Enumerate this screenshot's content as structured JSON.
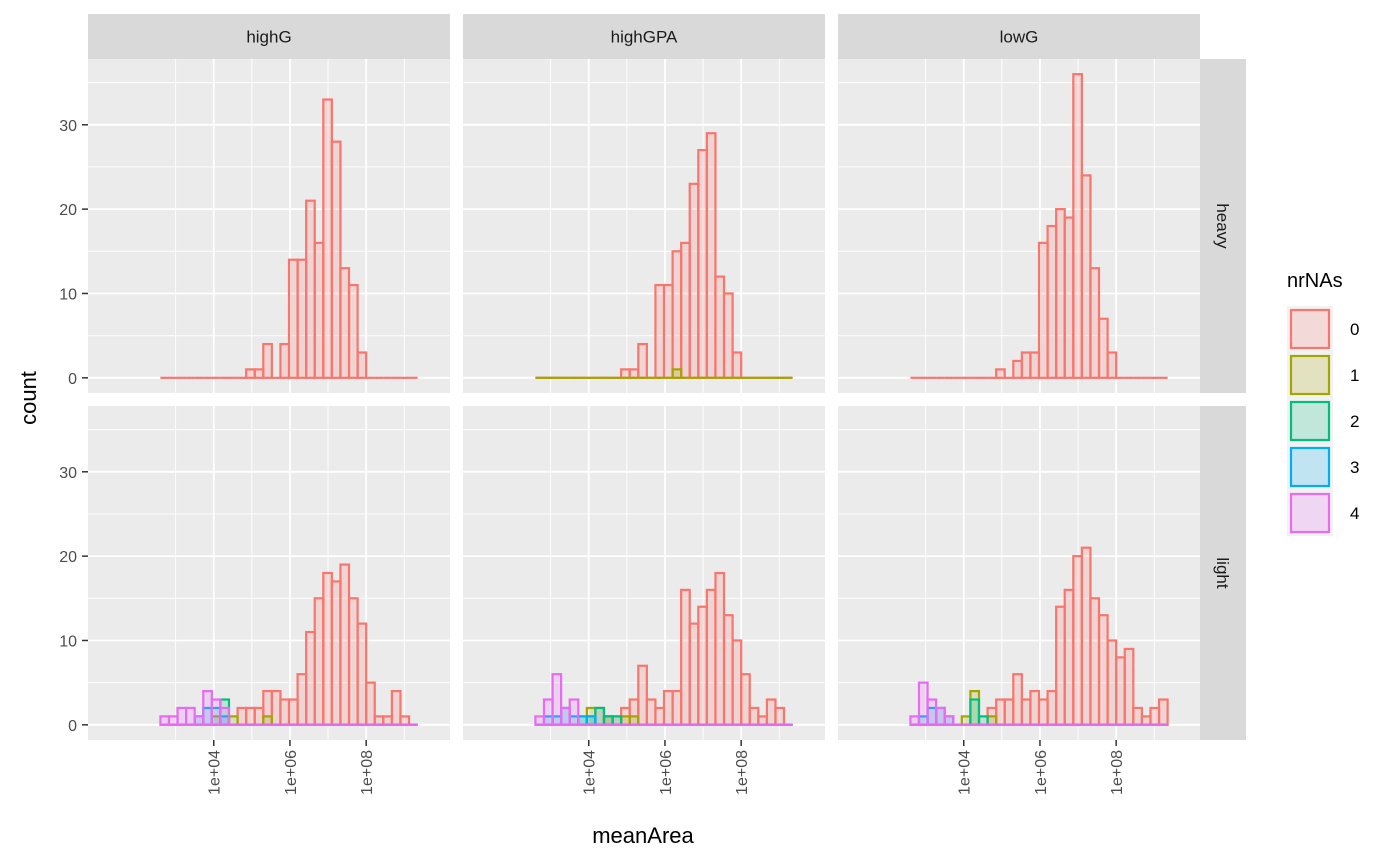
{
  "chart_data": {
    "type": "histogram",
    "x_axis": {
      "label": "meanArea",
      "scale": "log10",
      "range": [
        0.7,
        10.2
      ],
      "ticks": [
        4,
        6,
        8
      ],
      "tick_labels": [
        "1e+04",
        "1e+06",
        "1e+08"
      ]
    },
    "y_axis": {
      "label": "count",
      "range": [
        -1.8,
        37.8
      ],
      "ticks": [
        0,
        10,
        20,
        30
      ],
      "tick_labels": [
        "0",
        "10",
        "20",
        "30"
      ]
    },
    "bins": {
      "log10_start": 2.6,
      "log10_width": 0.225,
      "count": 30
    },
    "columns": [
      "highG",
      "highGPA",
      "lowG"
    ],
    "rows": [
      "heavy",
      "light"
    ],
    "legend": {
      "title": "nrNAs",
      "placement": "right",
      "entries": [
        {
          "label": "0",
          "color": "#F8766D"
        },
        {
          "label": "1",
          "color": "#A3A500"
        },
        {
          "label": "2",
          "color": "#00BF7D"
        },
        {
          "label": "3",
          "color": "#00B0F6"
        },
        {
          "label": "4",
          "color": "#E76BF3"
        }
      ]
    },
    "panels": [
      {
        "col": "highG",
        "row": "heavy",
        "series": [
          {
            "nrNAs": "0",
            "counts": [
              0,
              0,
              0,
              0,
              0,
              0,
              0,
              0,
              0,
              0,
              1,
              1,
              4,
              0,
              4,
              14,
              14,
              21,
              16,
              33,
              28,
              13,
              11,
              3,
              0,
              0,
              0,
              0,
              0,
              0
            ]
          }
        ]
      },
      {
        "col": "highGPA",
        "row": "heavy",
        "series": [
          {
            "nrNAs": "0",
            "counts": [
              0,
              0,
              0,
              0,
              0,
              0,
              0,
              0,
              0,
              0,
              1,
              1,
              4,
              0,
              11,
              11,
              15,
              16,
              23,
              27,
              29,
              12,
              10,
              3,
              0,
              0,
              0,
              0,
              0,
              0
            ]
          },
          {
            "nrNAs": "1",
            "counts": [
              0,
              0,
              0,
              0,
              0,
              0,
              0,
              0,
              0,
              0,
              0,
              0,
              0,
              0,
              0,
              0,
              1,
              0,
              0,
              0,
              0,
              0,
              0,
              0,
              0,
              0,
              0,
              0,
              0,
              0
            ]
          }
        ]
      },
      {
        "col": "lowG",
        "row": "heavy",
        "series": [
          {
            "nrNAs": "0",
            "counts": [
              0,
              0,
              0,
              0,
              0,
              0,
              0,
              0,
              0,
              0,
              1,
              0,
              2,
              3,
              3,
              16,
              18,
              20,
              19,
              36,
              24,
              13,
              7,
              3,
              0,
              0,
              0,
              0,
              0,
              0
            ]
          }
        ]
      },
      {
        "col": "highG",
        "row": "light",
        "series": [
          {
            "nrNAs": "0",
            "counts": [
              0,
              0,
              0,
              0,
              0,
              0,
              0,
              0,
              0,
              2,
              2,
              2,
              4,
              4,
              3,
              3,
              6,
              11,
              15,
              18,
              17,
              19,
              15,
              12,
              5,
              1,
              1,
              4,
              1,
              0
            ]
          },
          {
            "nrNAs": "1",
            "counts": [
              0,
              0,
              0,
              0,
              0,
              0,
              1,
              0,
              1,
              0,
              0,
              0,
              1,
              0,
              0,
              0,
              0,
              0,
              0,
              0,
              0,
              0,
              0,
              0,
              0,
              0,
              0,
              0,
              0,
              0
            ]
          },
          {
            "nrNAs": "2",
            "counts": [
              0,
              0,
              0,
              0,
              0,
              0,
              0,
              3,
              0,
              0,
              0,
              0,
              0,
              0,
              0,
              0,
              0,
              0,
              0,
              0,
              0,
              0,
              0,
              0,
              0,
              0,
              0,
              0,
              0,
              0
            ]
          },
          {
            "nrNAs": "3",
            "counts": [
              0,
              0,
              0,
              0,
              1,
              2,
              2,
              1,
              0,
              0,
              0,
              0,
              0,
              0,
              0,
              0,
              0,
              0,
              0,
              0,
              0,
              0,
              0,
              0,
              0,
              0,
              0,
              0,
              0,
              0
            ]
          },
          {
            "nrNAs": "4",
            "counts": [
              1,
              1,
              2,
              2,
              1,
              4,
              3,
              2,
              0,
              0,
              0,
              0,
              0,
              0,
              0,
              0,
              0,
              0,
              0,
              0,
              0,
              0,
              0,
              0,
              0,
              0,
              0,
              0,
              0,
              0
            ]
          }
        ]
      },
      {
        "col": "highGPA",
        "row": "light",
        "series": [
          {
            "nrNAs": "0",
            "counts": [
              0,
              0,
              0,
              0,
              0,
              0,
              0,
              2,
              1,
              1,
              2,
              3,
              7,
              3,
              2,
              4,
              4,
              16,
              12,
              14,
              16,
              18,
              13,
              10,
              6,
              2,
              1,
              3,
              2,
              0
            ]
          },
          {
            "nrNAs": "1",
            "counts": [
              0,
              0,
              0,
              0,
              0,
              0,
              2,
              0,
              1,
              0,
              1,
              1,
              0,
              0,
              0,
              0,
              0,
              0,
              0,
              0,
              0,
              0,
              0,
              0,
              0,
              0,
              0,
              0,
              0,
              0
            ]
          },
          {
            "nrNAs": "2",
            "counts": [
              0,
              0,
              0,
              0,
              0,
              1,
              1,
              2,
              1,
              1,
              0,
              0,
              0,
              0,
              0,
              0,
              0,
              0,
              0,
              0,
              0,
              0,
              0,
              0,
              0,
              0,
              0,
              0,
              0,
              0
            ]
          },
          {
            "nrNAs": "3",
            "counts": [
              0,
              1,
              1,
              2,
              1,
              1,
              1,
              0,
              0,
              0,
              0,
              0,
              0,
              0,
              0,
              0,
              0,
              0,
              0,
              0,
              0,
              0,
              0,
              0,
              0,
              0,
              0,
              0,
              0,
              0
            ]
          },
          {
            "nrNAs": "4",
            "counts": [
              1,
              3,
              6,
              2,
              3,
              0,
              0,
              0,
              0,
              0,
              0,
              0,
              0,
              0,
              0,
              0,
              0,
              0,
              0,
              0,
              0,
              0,
              0,
              0,
              0,
              0,
              0,
              0,
              0,
              0
            ]
          }
        ]
      },
      {
        "col": "lowG",
        "row": "light",
        "series": [
          {
            "nrNAs": "0",
            "counts": [
              0,
              0,
              0,
              0,
              0,
              0,
              0,
              0,
              0,
              2,
              3,
              3,
              6,
              3,
              4,
              3,
              4,
              14,
              16,
              20,
              21,
              15,
              13,
              10,
              8,
              9,
              2,
              1,
              2,
              3
            ]
          },
          {
            "nrNAs": "1",
            "counts": [
              0,
              0,
              0,
              0,
              0,
              0,
              1,
              4,
              0,
              1,
              0,
              0,
              0,
              0,
              0,
              0,
              0,
              0,
              0,
              0,
              0,
              0,
              0,
              0,
              0,
              0,
              0,
              0,
              0,
              0
            ]
          },
          {
            "nrNAs": "2",
            "counts": [
              0,
              0,
              0,
              0,
              0,
              0,
              0,
              3,
              1,
              0,
              0,
              0,
              0,
              0,
              0,
              0,
              0,
              0,
              0,
              0,
              0,
              0,
              0,
              0,
              0,
              0,
              0,
              0,
              0,
              0
            ]
          },
          {
            "nrNAs": "3",
            "counts": [
              0,
              1,
              2,
              2,
              1,
              0,
              0,
              0,
              0,
              0,
              0,
              0,
              0,
              0,
              0,
              0,
              0,
              0,
              0,
              0,
              0,
              0,
              0,
              0,
              0,
              0,
              0,
              0,
              0,
              0
            ]
          },
          {
            "nrNAs": "4",
            "counts": [
              1,
              5,
              3,
              2,
              1,
              0,
              0,
              0,
              0,
              0,
              0,
              0,
              0,
              0,
              0,
              0,
              0,
              0,
              0,
              0,
              0,
              0,
              0,
              0,
              0,
              0,
              0,
              0,
              0,
              0
            ]
          }
        ]
      }
    ]
  }
}
